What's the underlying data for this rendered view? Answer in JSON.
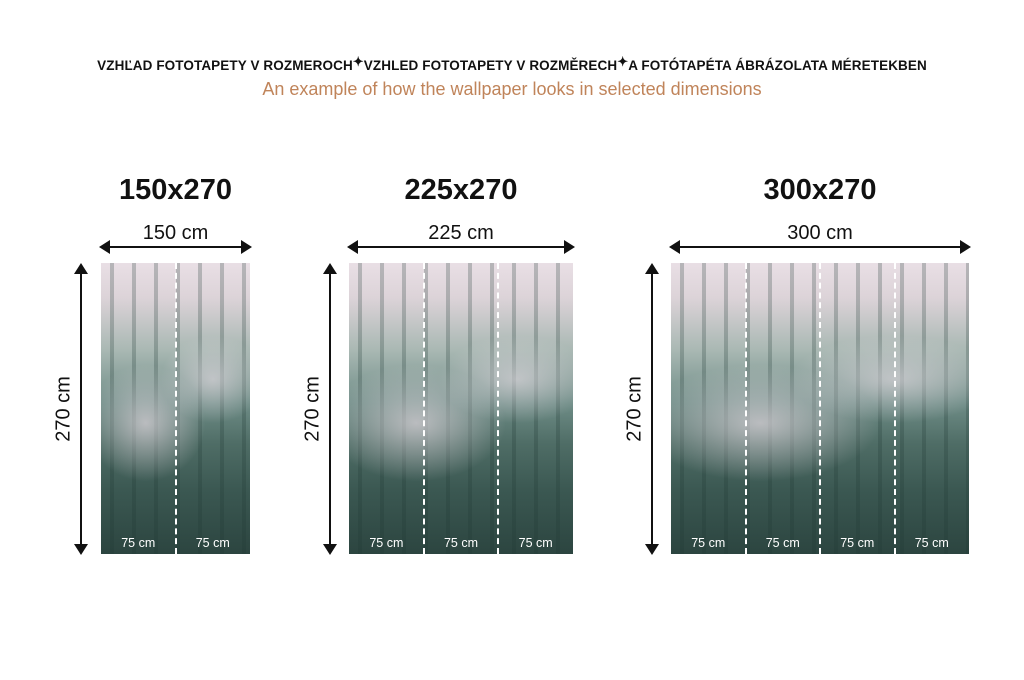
{
  "header": {
    "parts": [
      "VZHĽAD FOTOTAPETY V ROZMEROCH",
      "VZHLED FOTOTAPETY V ROZMĚRECH",
      "A FOTÓTAPÉTA ÁBRÁZOLATA MÉRETEKBEN"
    ],
    "separator_icon": "sparkle-icon",
    "subtitle": "An example of how the wallpaper looks in selected dimensions",
    "subtitle_color": "#c0845a"
  },
  "variants": [
    {
      "title": "150x270",
      "width_label": "150 cm",
      "height_label": "270 cm",
      "panels": [
        "75 cm",
        "75 cm"
      ]
    },
    {
      "title": "225x270",
      "width_label": "225 cm",
      "height_label": "270 cm",
      "panels": [
        "75 cm",
        "75 cm",
        "75 cm"
      ]
    },
    {
      "title": "300x270",
      "width_label": "300 cm",
      "height_label": "270 cm",
      "panels": [
        "75 cm",
        "75 cm",
        "75 cm",
        "75 cm"
      ]
    }
  ]
}
